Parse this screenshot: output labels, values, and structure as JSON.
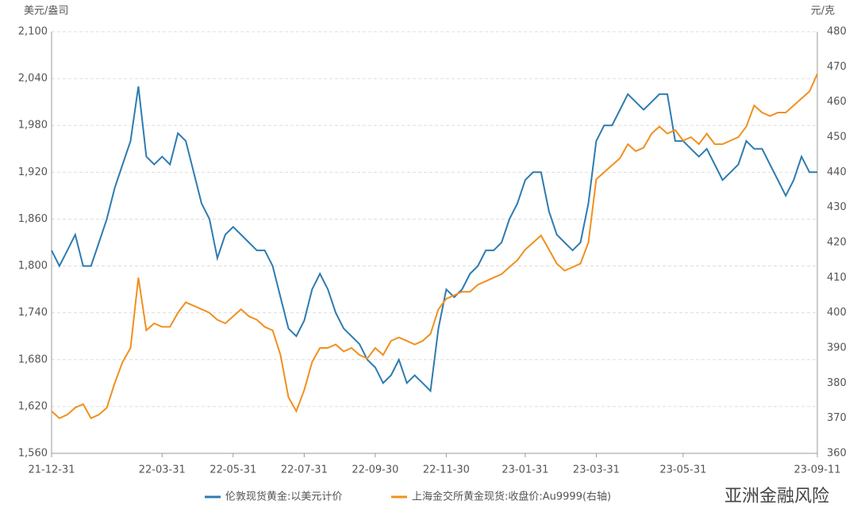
{
  "chart_data": {
    "type": "line",
    "ylabel": "美元/盎司",
    "y2label": "元/克",
    "categories": [
      "21-12-31",
      null,
      null,
      null,
      null,
      null,
      null,
      null,
      null,
      null,
      null,
      null,
      null,
      null,
      "22-03-31",
      null,
      null,
      null,
      null,
      null,
      null,
      null,
      null,
      "22-05-31",
      null,
      null,
      null,
      null,
      null,
      null,
      null,
      null,
      "22-07-31",
      null,
      null,
      null,
      null,
      null,
      null,
      null,
      null,
      "22-09-30",
      null,
      null,
      null,
      null,
      null,
      null,
      null,
      null,
      "22-11-30",
      null,
      null,
      null,
      null,
      null,
      null,
      null,
      null,
      null,
      "23-01-31",
      null,
      null,
      null,
      null,
      null,
      null,
      null,
      null,
      "23-03-31",
      null,
      null,
      null,
      null,
      null,
      null,
      null,
      null,
      null,
      null,
      "23-05-31",
      null,
      null,
      null,
      null,
      null,
      null,
      null,
      null,
      null,
      null,
      null,
      null,
      null,
      null,
      null,
      null,
      "23-09-11"
    ],
    "series": [
      {
        "name": "伦敦现货黄金:以美元计价",
        "color": "#2e7bb0",
        "axis": "y",
        "values": [
          1820,
          1800,
          1820,
          1840,
          1800,
          1800,
          1830,
          1860,
          1900,
          1930,
          1960,
          2030,
          1940,
          1930,
          1940,
          1930,
          1970,
          1960,
          1920,
          1880,
          1860,
          1810,
          1840,
          1850,
          1840,
          1830,
          1820,
          1820,
          1800,
          1760,
          1720,
          1710,
          1730,
          1770,
          1790,
          1770,
          1740,
          1720,
          1710,
          1700,
          1680,
          1670,
          1650,
          1660,
          1680,
          1650,
          1660,
          1650,
          1640,
          1720,
          1770,
          1760,
          1770,
          1790,
          1800,
          1820,
          1820,
          1830,
          1860,
          1880,
          1910,
          1920,
          1920,
          1870,
          1840,
          1830,
          1820,
          1830,
          1880,
          1960,
          1980,
          1980,
          2000,
          2020,
          2010,
          2000,
          2010,
          2020,
          2020,
          1960,
          1960,
          1950,
          1940,
          1950,
          1930,
          1910,
          1920,
          1930,
          1960,
          1950,
          1950,
          1930,
          1910,
          1890,
          1910,
          1940,
          1920,
          1920
        ]
      },
      {
        "name": "上海金交所黄金现货:收盘价:Au9999(右轴)",
        "color": "#f0901e",
        "axis": "y2",
        "values": [
          372,
          370,
          371,
          373,
          374,
          370,
          371,
          373,
          380,
          386,
          390,
          410,
          395,
          397,
          396,
          396,
          400,
          403,
          402,
          401,
          400,
          398,
          397,
          399,
          401,
          399,
          398,
          396,
          395,
          388,
          376,
          372,
          378,
          386,
          390,
          390,
          391,
          389,
          390,
          388,
          387,
          390,
          388,
          392,
          393,
          392,
          391,
          392,
          394,
          401,
          404,
          405,
          406,
          406,
          408,
          409,
          410,
          411,
          413,
          415,
          418,
          420,
          422,
          418,
          414,
          412,
          413,
          414,
          420,
          438,
          440,
          442,
          444,
          448,
          446,
          447,
          451,
          453,
          451,
          452,
          449,
          450,
          448,
          451,
          448,
          448,
          449,
          450,
          453,
          459,
          457,
          456,
          457,
          457,
          459,
          461,
          463,
          468
        ]
      }
    ],
    "ylim": [
      1560,
      2100
    ],
    "yticks": [
      {
        "value": 1560,
        "label": "1,560"
      },
      {
        "value": 1620,
        "label": "1,620"
      },
      {
        "value": 1680,
        "label": "1,680"
      },
      {
        "value": 1740,
        "label": "1,740"
      },
      {
        "value": 1800,
        "label": "1,800"
      },
      {
        "value": 1860,
        "label": "1,860"
      },
      {
        "value": 1920,
        "label": "1,920"
      },
      {
        "value": 1980,
        "label": "1,980"
      },
      {
        "value": 2040,
        "label": "2,040"
      },
      {
        "value": 2100,
        "label": "2,100"
      }
    ],
    "y2lim": [
      360,
      480
    ],
    "y2ticks": [
      360,
      370,
      380,
      390,
      400,
      410,
      420,
      430,
      440,
      450,
      460,
      470,
      480
    ],
    "grid": true,
    "watermark": "亚洲金融风险"
  }
}
